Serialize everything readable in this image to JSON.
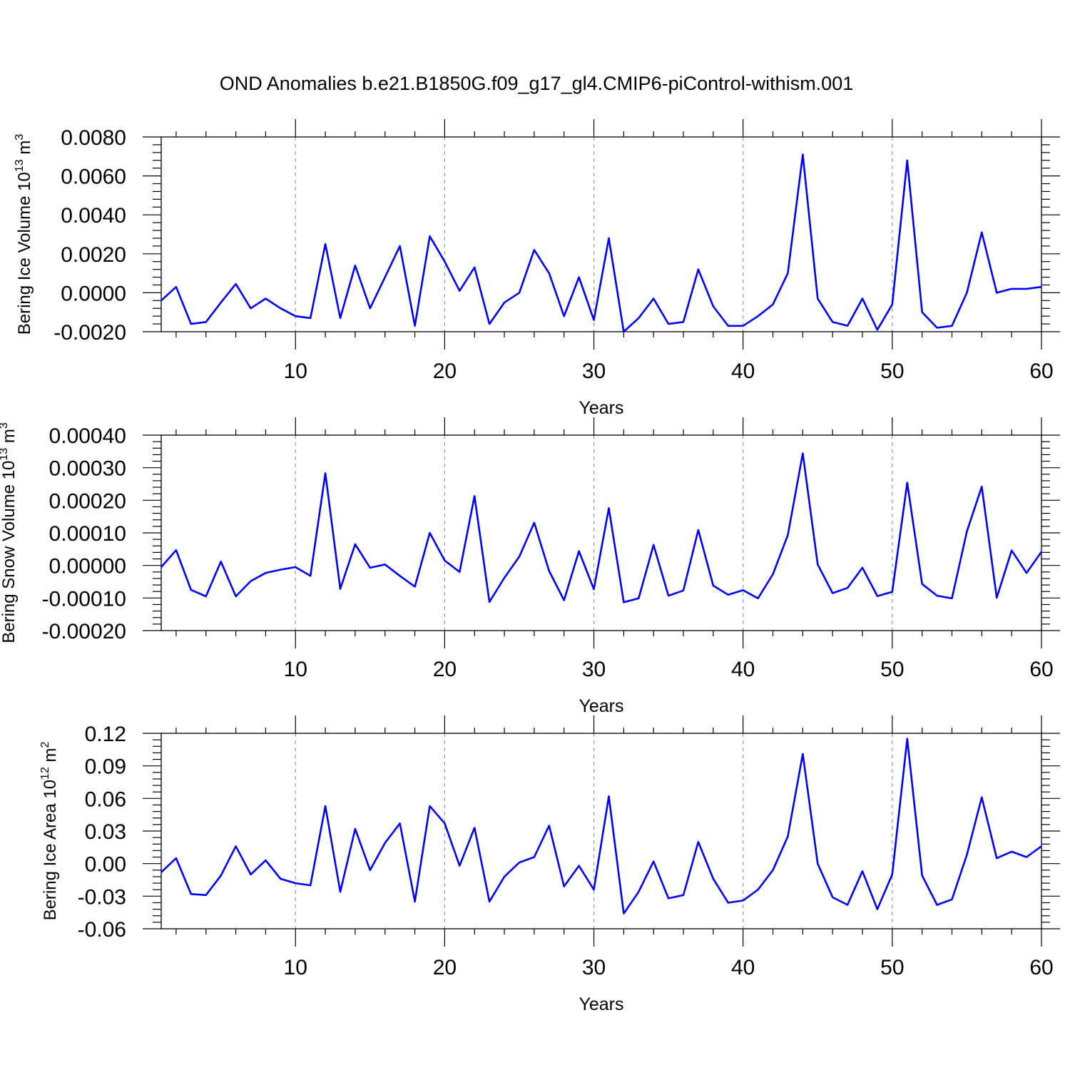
{
  "title": "OND Anomalies b.e21.B1850G.f09_g17_gl4.CMIP6-piControl-withism.001",
  "line_color": "#0000ff",
  "chart_data": [
    {
      "type": "line",
      "name": "ice-volume",
      "xlabel": "Years",
      "ylabel": {
        "main": "Bering Ice Volume 10",
        "exp": "13",
        "unit": " m",
        "unit_exp": "3"
      },
      "xlim": [
        1,
        60
      ],
      "ylim": [
        -0.002,
        0.008
      ],
      "xticks": [
        10,
        20,
        30,
        40,
        50,
        60
      ],
      "xtick_labels": [
        "10",
        "20",
        "30",
        "40",
        "50",
        "60"
      ],
      "yticks": [
        -0.002,
        0.0,
        0.002,
        0.004,
        0.006,
        0.008
      ],
      "ytick_labels": [
        "-0.0020",
        "0.0000",
        "0.0020",
        "0.0040",
        "0.0060",
        "0.0080"
      ],
      "grid": "x-dashed",
      "x": [
        1,
        2,
        3,
        4,
        5,
        6,
        7,
        8,
        9,
        10,
        11,
        12,
        13,
        14,
        15,
        16,
        17,
        18,
        19,
        20,
        21,
        22,
        23,
        24,
        25,
        26,
        27,
        28,
        29,
        30,
        31,
        32,
        33,
        34,
        35,
        36,
        37,
        38,
        39,
        40,
        41,
        42,
        43,
        44,
        45,
        46,
        47,
        48,
        49,
        50,
        51,
        52,
        53,
        54,
        55,
        56,
        57,
        58,
        59,
        60
      ],
      "y": [
        -0.0004,
        0.0003,
        -0.0016,
        -0.0015,
        -0.0005,
        0.00045,
        -0.0008,
        -0.0003,
        -0.0008,
        -0.0012,
        -0.0013,
        0.0025,
        -0.0013,
        0.0014,
        -0.0008,
        0.0008,
        0.0024,
        -0.0017,
        0.0029,
        0.0016,
        0.0001,
        0.0013,
        -0.0016,
        -0.0005,
        0.0,
        0.0022,
        0.001,
        -0.0012,
        0.0008,
        -0.0014,
        0.0028,
        -0.002,
        -0.0013,
        -0.0003,
        -0.0016,
        -0.0015,
        0.0012,
        -0.0007,
        -0.0017,
        -0.0017,
        -0.0012,
        -0.0006,
        0.001,
        0.0071,
        -0.0003,
        -0.0015,
        -0.0017,
        -0.0003,
        -0.0019,
        -0.0006,
        0.0068,
        -0.001,
        -0.0018,
        -0.0017,
        0.0,
        0.0031,
        0.0,
        0.0002,
        0.0002,
        0.0003
      ]
    },
    {
      "type": "line",
      "name": "snow-volume",
      "xlabel": "Years",
      "ylabel": {
        "main": "Bering Snow Volume 10",
        "exp": "13",
        "unit": " m",
        "unit_exp": "3"
      },
      "xlim": [
        1,
        60
      ],
      "ylim": [
        -0.0002,
        0.0004
      ],
      "xticks": [
        10,
        20,
        30,
        40,
        50,
        60
      ],
      "xtick_labels": [
        "10",
        "20",
        "30",
        "40",
        "50",
        "60"
      ],
      "yticks": [
        -0.0002,
        -0.0001,
        0.0,
        0.0001,
        0.0002,
        0.0003,
        0.0004
      ],
      "ytick_labels": [
        "-0.00020",
        "-0.00010",
        "0.00000",
        "0.00010",
        "0.00020",
        "0.00030",
        "0.00040"
      ],
      "grid": "x-dashed",
      "x": [
        1,
        2,
        3,
        4,
        5,
        6,
        7,
        8,
        9,
        10,
        11,
        12,
        13,
        14,
        15,
        16,
        17,
        18,
        19,
        20,
        21,
        22,
        23,
        24,
        25,
        26,
        27,
        28,
        29,
        30,
        31,
        32,
        33,
        34,
        35,
        36,
        37,
        38,
        39,
        40,
        41,
        42,
        43,
        44,
        45,
        46,
        47,
        48,
        49,
        50,
        51,
        52,
        53,
        54,
        55,
        56,
        57,
        58,
        59,
        60
      ],
      "y": [
        -5e-06,
        4.7e-05,
        -7.5e-05,
        -9.5e-05,
        1.2e-05,
        -9.5e-05,
        -4.8e-05,
        -2.3e-05,
        -1.3e-05,
        -5e-06,
        -3.2e-05,
        0.000283,
        -7.2e-05,
        6.5e-05,
        -7e-06,
        3e-06,
        -3.2e-05,
        -6.5e-05,
        0.0001,
        1.5e-05,
        -2e-05,
        0.000213,
        -0.000112,
        -3.8e-05,
        2.7e-05,
        0.000131,
        -1.7e-05,
        -0.000107,
        4.4e-05,
        -7.3e-05,
        0.000176,
        -0.000113,
        -0.000101,
        6.3e-05,
        -9.3e-05,
        -7.7e-05,
        0.000109,
        -6.2e-05,
        -9e-05,
        -7.6e-05,
        -0.000101,
        -2.7e-05,
        9.3e-05,
        0.000344,
        3e-06,
        -8.5e-05,
        -6.9e-05,
        -7e-06,
        -9.4e-05,
        -8.1e-05,
        0.000254,
        -5.7e-05,
        -9.3e-05,
        -0.000101,
        0.000104,
        0.000242,
        -9.9e-05,
        4.6e-05,
        -2.3e-05,
        4.2e-05
      ]
    },
    {
      "type": "line",
      "name": "ice-area",
      "xlabel": "Years",
      "ylabel": {
        "main": "Bering Ice Area 10",
        "exp": "12",
        "unit": " m",
        "unit_exp": "2"
      },
      "xlim": [
        1,
        60
      ],
      "ylim": [
        -0.06,
        0.12
      ],
      "xticks": [
        10,
        20,
        30,
        40,
        50,
        60
      ],
      "xtick_labels": [
        "10",
        "20",
        "30",
        "40",
        "50",
        "60"
      ],
      "yticks": [
        -0.06,
        -0.03,
        0.0,
        0.03,
        0.06,
        0.09,
        0.12
      ],
      "ytick_labels": [
        "-0.06",
        "-0.03",
        "0.00",
        "0.03",
        "0.06",
        "0.09",
        "0.12"
      ],
      "grid": "x-dashed",
      "x": [
        1,
        2,
        3,
        4,
        5,
        6,
        7,
        8,
        9,
        10,
        11,
        12,
        13,
        14,
        15,
        16,
        17,
        18,
        19,
        20,
        21,
        22,
        23,
        24,
        25,
        26,
        27,
        28,
        29,
        30,
        31,
        32,
        33,
        34,
        35,
        36,
        37,
        38,
        39,
        40,
        41,
        42,
        43,
        44,
        45,
        46,
        47,
        48,
        49,
        50,
        51,
        52,
        53,
        54,
        55,
        56,
        57,
        58,
        59,
        60
      ],
      "y": [
        -0.008,
        0.005,
        -0.028,
        -0.029,
        -0.011,
        0.016,
        -0.01,
        0.003,
        -0.014,
        -0.018,
        -0.02,
        0.053,
        -0.026,
        0.032,
        -0.006,
        0.019,
        0.037,
        -0.035,
        0.053,
        0.037,
        -0.002,
        0.033,
        -0.035,
        -0.012,
        0.001,
        0.006,
        0.035,
        -0.021,
        -0.002,
        -0.024,
        0.062,
        -0.046,
        -0.026,
        0.002,
        -0.032,
        -0.029,
        0.02,
        -0.014,
        -0.036,
        -0.034,
        -0.024,
        -0.006,
        0.025,
        0.101,
        0.0,
        -0.031,
        -0.038,
        -0.007,
        -0.042,
        -0.01,
        0.115,
        -0.011,
        -0.038,
        -0.033,
        0.008,
        0.061,
        0.005,
        0.011,
        0.006,
        0.016
      ]
    }
  ]
}
